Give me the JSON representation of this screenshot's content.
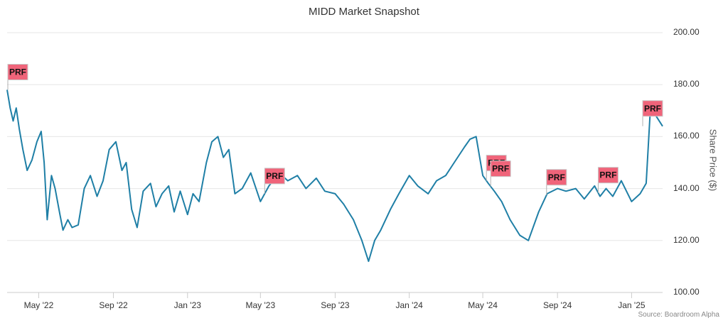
{
  "chart_data": {
    "type": "line",
    "title": "MIDD Market Snapshot",
    "ylabel": "Share Price ($)",
    "xlabel": "",
    "source": "Source: Boardroom Alpha",
    "ylim": [
      100,
      200
    ],
    "yticks": [
      "200.00",
      "180.00",
      "160.00",
      "140.00",
      "120.00",
      "100.00"
    ],
    "ytick_values": [
      200,
      180,
      160,
      140,
      120,
      100
    ],
    "xticks": [
      "May '22",
      "Sep '22",
      "Jan '23",
      "May '23",
      "Sep '23",
      "Jan '24",
      "May '24",
      "Sep '24",
      "Jan '25"
    ],
    "xtick_values": [
      "2022-05-01",
      "2022-09-01",
      "2023-01-01",
      "2023-05-01",
      "2023-09-01",
      "2024-01-01",
      "2024-05-01",
      "2024-09-01",
      "2025-01-01"
    ],
    "xlim": [
      "2022-03-10",
      "2025-02-21"
    ],
    "grid": true,
    "line_color": "#1f7fa6",
    "flag_color": "#f0647a",
    "series": [
      {
        "x": [
          "2022-03-10",
          "2022-03-15",
          "2022-03-20",
          "2022-03-25",
          "2022-03-30",
          "2022-04-05",
          "2022-04-12",
          "2022-04-20",
          "2022-04-28",
          "2022-05-05",
          "2022-05-10",
          "2022-05-15",
          "2022-05-22",
          "2022-05-28",
          "2022-06-05",
          "2022-06-10",
          "2022-06-18",
          "2022-06-25",
          "2022-07-05",
          "2022-07-15",
          "2022-07-25",
          "2022-08-05",
          "2022-08-15",
          "2022-08-25",
          "2022-09-05",
          "2022-09-15",
          "2022-09-22",
          "2022-10-01",
          "2022-10-10",
          "2022-10-20",
          "2022-11-01",
          "2022-11-10",
          "2022-11-20",
          "2022-12-01",
          "2022-12-10",
          "2022-12-20",
          "2023-01-01",
          "2023-01-10",
          "2023-01-20",
          "2023-02-01",
          "2023-02-10",
          "2023-02-20",
          "2023-03-01",
          "2023-03-10",
          "2023-03-20",
          "2023-04-01",
          "2023-04-15",
          "2023-05-01",
          "2023-05-15",
          "2023-06-01",
          "2023-06-15",
          "2023-07-01",
          "2023-07-15",
          "2023-08-01",
          "2023-08-15",
          "2023-09-01",
          "2023-09-15",
          "2023-10-01",
          "2023-10-15",
          "2023-10-26",
          "2023-11-05",
          "2023-11-15",
          "2023-12-01",
          "2023-12-15",
          "2024-01-01",
          "2024-01-15",
          "2024-02-01",
          "2024-02-15",
          "2024-03-01",
          "2024-03-15",
          "2024-04-01",
          "2024-04-10",
          "2024-04-20",
          "2024-05-01",
          "2024-05-10",
          "2024-05-20",
          "2024-06-01",
          "2024-06-15",
          "2024-07-01",
          "2024-07-15",
          "2024-08-01",
          "2024-08-15",
          "2024-09-01",
          "2024-09-15",
          "2024-10-01",
          "2024-10-15",
          "2024-11-01",
          "2024-11-10",
          "2024-11-20",
          "2024-12-01",
          "2024-12-15",
          "2025-01-01",
          "2025-01-15",
          "2025-01-25",
          "2025-02-01",
          "2025-02-10",
          "2025-02-21"
        ],
        "y": [
          178,
          171,
          166,
          171,
          163,
          155,
          147,
          151,
          158,
          162,
          150,
          128,
          145,
          140,
          130,
          124,
          128,
          125,
          126,
          140,
          145,
          137,
          143,
          155,
          158,
          147,
          150,
          132,
          125,
          139,
          142,
          133,
          138,
          141,
          131,
          139,
          130,
          138,
          135,
          150,
          158,
          160,
          152,
          155,
          138,
          140,
          146,
          135,
          141,
          146,
          143,
          145,
          140,
          144,
          139,
          138,
          134,
          128,
          120,
          112,
          120,
          124,
          132,
          138,
          145,
          141,
          138,
          143,
          145,
          150,
          156,
          159,
          160,
          145,
          142,
          139,
          135,
          128,
          122,
          120,
          131,
          138,
          140,
          139,
          140,
          136,
          141,
          137,
          140,
          137,
          143,
          135,
          138,
          142,
          171,
          168,
          164
        ],
        "flags": [
          {
            "x": "2022-03-10",
            "label": "PRF"
          },
          {
            "x": "2023-05-08",
            "label": "PRF"
          },
          {
            "x": "2024-05-07",
            "label": "PRF"
          },
          {
            "x": "2024-05-14",
            "label": "PRF"
          },
          {
            "x": "2024-08-14",
            "label": "PRF"
          },
          {
            "x": "2024-11-07",
            "label": "PRF"
          },
          {
            "x": "2025-02-21",
            "label": "PRF"
          }
        ]
      }
    ]
  }
}
